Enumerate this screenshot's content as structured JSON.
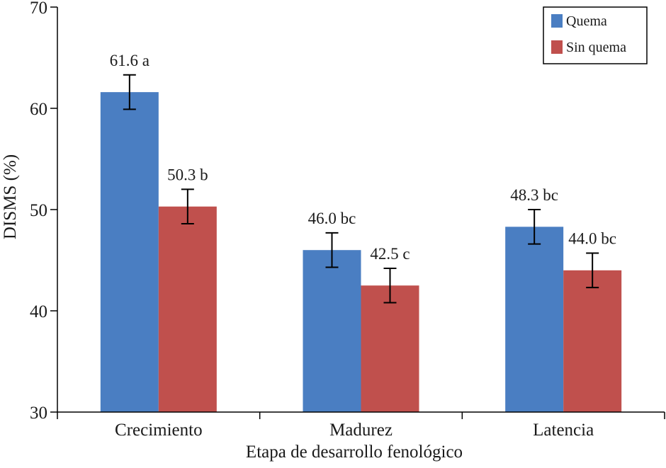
{
  "chart_data": {
    "type": "bar",
    "title": "",
    "xlabel": "Etapa de desarrollo fenológico",
    "ylabel": "DISMS (%)",
    "ylim": [
      30,
      70
    ],
    "yticks": [
      30,
      40,
      50,
      60,
      70
    ],
    "categories": [
      "Crecimiento",
      "Madurez",
      "Latencia"
    ],
    "series": [
      {
        "name": "Quema",
        "color": "#4a7ec2",
        "values": [
          61.6,
          46.0,
          48.3
        ],
        "errors": [
          1.7,
          1.7,
          1.7
        ],
        "labels": [
          "61.6 a",
          "46.0 bc",
          "48.3 bc"
        ]
      },
      {
        "name": "Sin quema",
        "color": "#c0504d",
        "values": [
          50.3,
          42.5,
          44.0
        ],
        "errors": [
          1.7,
          1.7,
          1.7
        ],
        "labels": [
          "50.3 b",
          "42.5 c",
          "44.0 bc"
        ]
      }
    ],
    "legend": "top-right",
    "grid": false
  }
}
